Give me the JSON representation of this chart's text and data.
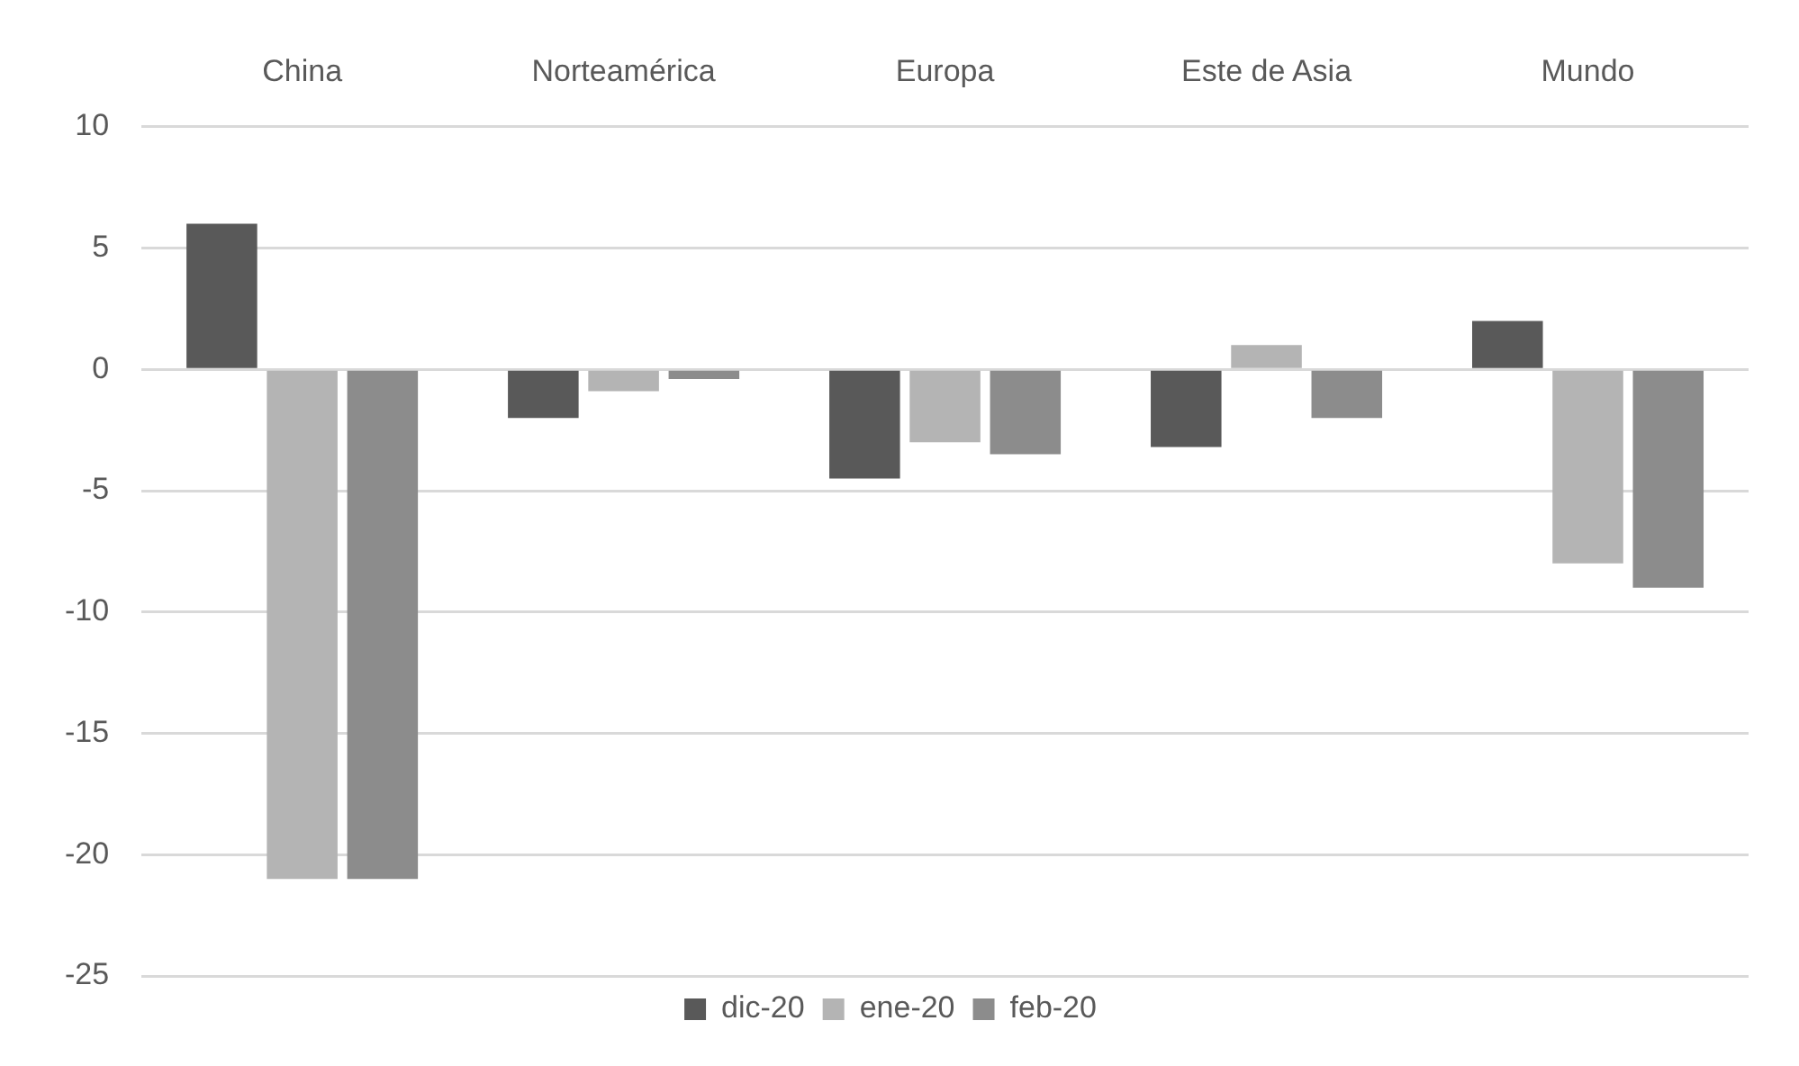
{
  "chart_data": {
    "type": "bar",
    "categories": [
      "China",
      "Norteamérica",
      "Europa",
      "Este de Asia",
      "Mundo"
    ],
    "series": [
      {
        "name": "dic-20",
        "color": "#595959",
        "values": [
          6,
          -2,
          -4.5,
          -3.2,
          2
        ]
      },
      {
        "name": "ene-20",
        "color": "#b4b4b4",
        "values": [
          -21,
          -0.9,
          -3,
          1,
          -8
        ]
      },
      {
        "name": "feb-20",
        "color": "#8c8c8c",
        "values": [
          -21,
          -0.4,
          -3.5,
          -2,
          -9
        ]
      }
    ],
    "ylim": [
      -25,
      10
    ],
    "yticks": [
      -25,
      -20,
      -15,
      -10,
      -5,
      0,
      5,
      10
    ],
    "grid": "y",
    "legend": "bottom"
  }
}
